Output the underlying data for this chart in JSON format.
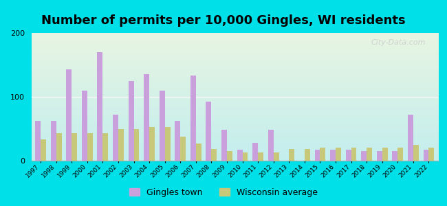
{
  "title": "Number of permits per 10,000 Gingles, WI residents",
  "years": [
    1997,
    1998,
    1999,
    2000,
    2001,
    2002,
    2003,
    2004,
    2005,
    2006,
    2007,
    2008,
    2009,
    2010,
    2011,
    2012,
    2013,
    2014,
    2015,
    2016,
    2017,
    2018,
    2019,
    2020,
    2021,
    2022
  ],
  "gingles": [
    62,
    62,
    143,
    110,
    170,
    72,
    125,
    135,
    110,
    62,
    133,
    92,
    48,
    17,
    28,
    48,
    0,
    0,
    17,
    17,
    17,
    15,
    15,
    15,
    72,
    17
  ],
  "wisconsin": [
    33,
    43,
    43,
    43,
    43,
    50,
    50,
    53,
    53,
    38,
    27,
    18,
    15,
    13,
    13,
    13,
    18,
    18,
    20,
    20,
    20,
    20,
    20,
    20,
    25,
    20
  ],
  "gingles_color": "#c9a0dc",
  "wisconsin_color": "#c8c87a",
  "background_outer": "#00e0e8",
  "ylim": [
    0,
    200
  ],
  "yticks": [
    0,
    100,
    200
  ],
  "title_fontsize": 13,
  "legend_labels": [
    "Gingles town",
    "Wisconsin average"
  ],
  "bar_width": 0.35,
  "watermark": "City-Data.com"
}
